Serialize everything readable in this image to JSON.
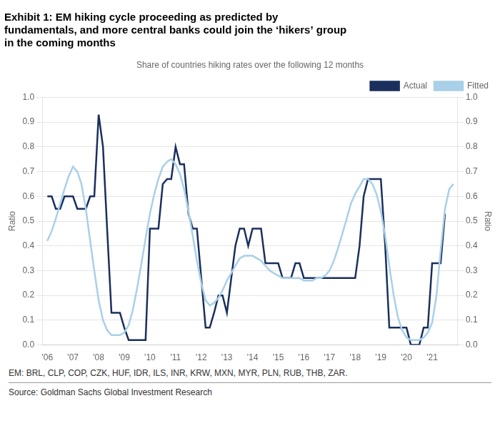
{
  "chart_data": {
    "type": "line",
    "title": "Exhibit 1: EM hiking cycle proceeding as predicted by\nfundamentals, and more central banks could join the ‘hikers’ group\nin the coming months",
    "subtitle": "Share of countries hiking rates over the following 12 months",
    "ylabel": "Ratio",
    "y2label": "Ratio",
    "footnote": "EM: BRL, CLP, COP, CZK, HUF, IDR, ILS, INR, KRW, MXN, MYR, PLN, RUB, THB, ZAR.",
    "source": "Source: Goldman Sachs Global Investment Research",
    "xlim": [
      2005.8,
      2022.0
    ],
    "xticks": [
      {
        "value": 2006,
        "label": "'06"
      },
      {
        "value": 2007,
        "label": "'07"
      },
      {
        "value": 2008,
        "label": "'08"
      },
      {
        "value": 2009,
        "label": "'09"
      },
      {
        "value": 2010,
        "label": "'10"
      },
      {
        "value": 2011,
        "label": "'11"
      },
      {
        "value": 2012,
        "label": "'12"
      },
      {
        "value": 2013,
        "label": "'13"
      },
      {
        "value": 2014,
        "label": "'14"
      },
      {
        "value": 2015,
        "label": "'15"
      },
      {
        "value": 2016,
        "label": "'16"
      },
      {
        "value": 2017,
        "label": "'17"
      },
      {
        "value": 2018,
        "label": "'18"
      },
      {
        "value": 2019,
        "label": "'19"
      },
      {
        "value": 2020,
        "label": "'20"
      },
      {
        "value": 2021,
        "label": "'21"
      }
    ],
    "ylim": [
      0.0,
      1.0
    ],
    "yticks": [
      {
        "value": 0,
        "label": "0.0"
      },
      0.1,
      0.2,
      0.3,
      0.4,
      0.5,
      0.6,
      0.7,
      0.8,
      0.9,
      {
        "value": 1,
        "label": "1.0"
      }
    ],
    "y2lim": [
      0.0,
      1.0
    ],
    "y2ticks": [
      {
        "value": 0,
        "label": "0.0"
      },
      0.1,
      0.2,
      0.3,
      0.4,
      0.5,
      0.6,
      0.7,
      0.8,
      0.9,
      {
        "value": 1,
        "label": "1.0"
      }
    ],
    "grid": true,
    "legend": "upper right",
    "series": [
      {
        "name": "Fitted",
        "color": "#a8d0e8",
        "x": [
          2006.0,
          2006.17,
          2006.33,
          2006.5,
          2006.67,
          2006.83,
          2007.0,
          2007.17,
          2007.33,
          2007.5,
          2007.67,
          2007.83,
          2008.0,
          2008.17,
          2008.33,
          2008.5,
          2008.67,
          2008.83,
          2009.0,
          2009.17,
          2009.33,
          2009.5,
          2009.67,
          2009.83,
          2010.0,
          2010.17,
          2010.33,
          2010.5,
          2010.67,
          2010.83,
          2011.0,
          2011.17,
          2011.33,
          2011.5,
          2011.67,
          2011.83,
          2012.0,
          2012.17,
          2012.33,
          2012.5,
          2012.67,
          2012.83,
          2013.0,
          2013.17,
          2013.33,
          2013.5,
          2013.67,
          2013.83,
          2014.0,
          2014.17,
          2014.33,
          2014.5,
          2014.67,
          2014.83,
          2015.0,
          2015.17,
          2015.33,
          2015.5,
          2015.67,
          2015.83,
          2016.0,
          2016.17,
          2016.33,
          2016.5,
          2016.67,
          2016.83,
          2017.0,
          2017.17,
          2017.33,
          2017.5,
          2017.67,
          2017.83,
          2018.0,
          2018.17,
          2018.33,
          2018.5,
          2018.67,
          2018.83,
          2019.0,
          2019.17,
          2019.33,
          2019.5,
          2019.67,
          2019.83,
          2020.0,
          2020.17,
          2020.33,
          2020.5,
          2020.67,
          2020.83,
          2021.0,
          2021.17,
          2021.33,
          2021.5,
          2021.67,
          2021.83
        ],
        "values": [
          0.42,
          0.46,
          0.51,
          0.57,
          0.63,
          0.68,
          0.72,
          0.7,
          0.65,
          0.55,
          0.42,
          0.3,
          0.18,
          0.1,
          0.06,
          0.04,
          0.04,
          0.04,
          0.05,
          0.08,
          0.14,
          0.23,
          0.33,
          0.43,
          0.53,
          0.61,
          0.67,
          0.72,
          0.74,
          0.75,
          0.73,
          0.69,
          0.63,
          0.54,
          0.44,
          0.34,
          0.25,
          0.18,
          0.16,
          0.17,
          0.19,
          0.22,
          0.26,
          0.29,
          0.32,
          0.35,
          0.36,
          0.36,
          0.36,
          0.35,
          0.34,
          0.32,
          0.3,
          0.29,
          0.28,
          0.27,
          0.27,
          0.27,
          0.27,
          0.27,
          0.26,
          0.26,
          0.26,
          0.27,
          0.27,
          0.28,
          0.3,
          0.34,
          0.39,
          0.45,
          0.51,
          0.57,
          0.61,
          0.64,
          0.67,
          0.67,
          0.65,
          0.61,
          0.54,
          0.44,
          0.32,
          0.2,
          0.11,
          0.06,
          0.03,
          0.02,
          0.02,
          0.02,
          0.03,
          0.05,
          0.09,
          0.2,
          0.38,
          0.55,
          0.63,
          0.65
        ]
      },
      {
        "name": "Actual",
        "color": "#1a2f5e",
        "x": [
          2006.0,
          2006.17,
          2006.33,
          2006.5,
          2006.67,
          2006.83,
          2007.0,
          2007.17,
          2007.33,
          2007.5,
          2007.67,
          2007.83,
          2008.0,
          2008.17,
          2008.33,
          2008.5,
          2008.67,
          2008.83,
          2009.0,
          2009.17,
          2009.33,
          2009.5,
          2009.67,
          2009.83,
          2010.0,
          2010.17,
          2010.33,
          2010.5,
          2010.67,
          2010.83,
          2011.0,
          2011.17,
          2011.33,
          2011.5,
          2011.67,
          2011.83,
          2012.0,
          2012.17,
          2012.33,
          2012.5,
          2012.67,
          2012.83,
          2013.0,
          2013.17,
          2013.33,
          2013.5,
          2013.67,
          2013.83,
          2014.0,
          2014.17,
          2014.33,
          2014.5,
          2014.67,
          2014.83,
          2015.0,
          2015.17,
          2015.33,
          2015.5,
          2015.67,
          2015.83,
          2016.0,
          2016.17,
          2016.33,
          2016.5,
          2016.67,
          2016.83,
          2017.0,
          2017.17,
          2017.33,
          2017.5,
          2017.67,
          2017.83,
          2018.0,
          2018.17,
          2018.33,
          2018.5,
          2018.67,
          2018.83,
          2019.0,
          2019.17,
          2019.33,
          2019.5,
          2019.67,
          2019.83,
          2020.0,
          2020.17,
          2020.33,
          2020.5,
          2020.67,
          2020.83,
          2021.0,
          2021.17,
          2021.33,
          2021.5
        ],
        "values": [
          0.6,
          0.6,
          0.55,
          0.55,
          0.6,
          0.6,
          0.6,
          0.55,
          0.55,
          0.55,
          0.6,
          0.6,
          0.93,
          0.8,
          0.47,
          0.13,
          0.13,
          0.13,
          0.07,
          0.02,
          0.02,
          0.02,
          0.02,
          0.02,
          0.47,
          0.47,
          0.47,
          0.65,
          0.67,
          0.67,
          0.8,
          0.73,
          0.73,
          0.53,
          0.47,
          0.47,
          0.27,
          0.07,
          0.07,
          0.13,
          0.2,
          0.2,
          0.13,
          0.27,
          0.4,
          0.47,
          0.47,
          0.4,
          0.47,
          0.47,
          0.47,
          0.33,
          0.33,
          0.33,
          0.33,
          0.27,
          0.27,
          0.27,
          0.33,
          0.33,
          0.27,
          0.27,
          0.27,
          0.27,
          0.27,
          0.27,
          0.27,
          0.27,
          0.27,
          0.27,
          0.27,
          0.27,
          0.27,
          0.4,
          0.6,
          0.67,
          0.67,
          0.67,
          0.67,
          0.4,
          0.07,
          0.07,
          0.07,
          0.07,
          0.07,
          0.0,
          0.0,
          0.0,
          0.07,
          0.07,
          0.33,
          0.33,
          0.33,
          0.53
        ]
      }
    ]
  }
}
